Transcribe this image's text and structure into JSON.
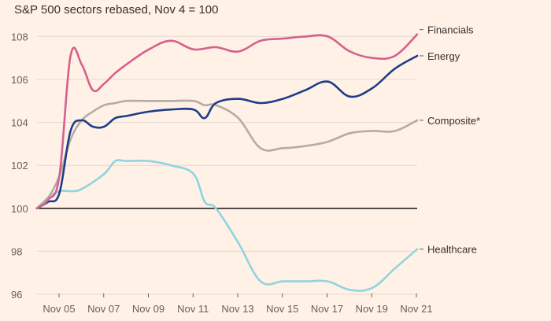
{
  "chart_data": {
    "type": "line",
    "title": "S&P 500 sectors rebased, Nov 4 = 100",
    "xlabel": "",
    "ylabel": "",
    "x_tick_labels": [
      "Nov 05",
      "Nov 07",
      "Nov 09",
      "Nov 11",
      "Nov 13",
      "Nov 15",
      "Nov 17",
      "Nov 19",
      "Nov 21"
    ],
    "x_range": [
      0,
      17
    ],
    "ylim": [
      96,
      108.6
    ],
    "y_ticks": [
      96,
      98,
      100,
      102,
      104,
      106,
      108
    ],
    "baseline": 100,
    "grid": true,
    "series": [
      {
        "name": "Financials",
        "color": "#d6608c",
        "x": [
          0,
          0.5,
          1,
          1.5,
          2,
          2.5,
          3,
          3.5,
          4,
          5,
          6,
          7,
          8,
          9,
          10,
          11,
          12,
          13,
          14,
          15,
          16,
          17
        ],
        "values": [
          100,
          100.4,
          101.5,
          107.1,
          106.7,
          105.5,
          105.8,
          106.3,
          106.7,
          107.4,
          107.8,
          107.4,
          107.5,
          107.3,
          107.8,
          107.9,
          108.0,
          108.0,
          107.3,
          107.0,
          107.1,
          108.1
        ]
      },
      {
        "name": "Energy",
        "color": "#1d3d8a",
        "x": [
          0,
          0.5,
          1,
          1.5,
          2,
          2.5,
          3,
          3.5,
          4,
          5,
          6,
          7,
          7.5,
          8,
          9,
          10,
          11,
          12,
          13,
          14,
          15,
          16,
          17
        ],
        "values": [
          100,
          100.3,
          100.7,
          103.6,
          104.1,
          103.8,
          103.8,
          104.2,
          104.3,
          104.5,
          104.6,
          104.6,
          104.2,
          104.9,
          105.1,
          104.9,
          105.1,
          105.5,
          105.9,
          105.2,
          105.6,
          106.5,
          107.1
        ]
      },
      {
        "name": "Composite*",
        "color": "#b5aba5",
        "x": [
          0,
          0.5,
          1,
          1.5,
          2,
          2.5,
          3,
          3.5,
          4,
          5,
          6,
          7,
          7.5,
          8,
          9,
          10,
          11,
          12,
          13,
          14,
          15,
          16,
          17
        ],
        "values": [
          100,
          100.5,
          101.5,
          103.2,
          104.1,
          104.5,
          104.8,
          104.9,
          105.0,
          105.0,
          105.0,
          105.0,
          104.8,
          104.8,
          104.2,
          102.8,
          102.8,
          102.9,
          103.1,
          103.5,
          103.6,
          103.6,
          104.1
        ]
      },
      {
        "name": "Healthcare",
        "color": "#8fd4e0",
        "x": [
          0,
          0.5,
          1,
          1.5,
          2,
          3,
          3.5,
          4,
          5,
          6,
          7,
          7.5,
          8,
          9,
          10,
          11,
          12,
          13,
          14,
          15,
          16,
          17
        ],
        "values": [
          100,
          100.5,
          100.8,
          100.8,
          100.9,
          101.6,
          102.2,
          102.2,
          102.2,
          102.0,
          101.6,
          100.3,
          100.0,
          98.4,
          96.6,
          96.6,
          96.6,
          96.6,
          96.2,
          96.3,
          97.2,
          98.1
        ]
      }
    ]
  }
}
